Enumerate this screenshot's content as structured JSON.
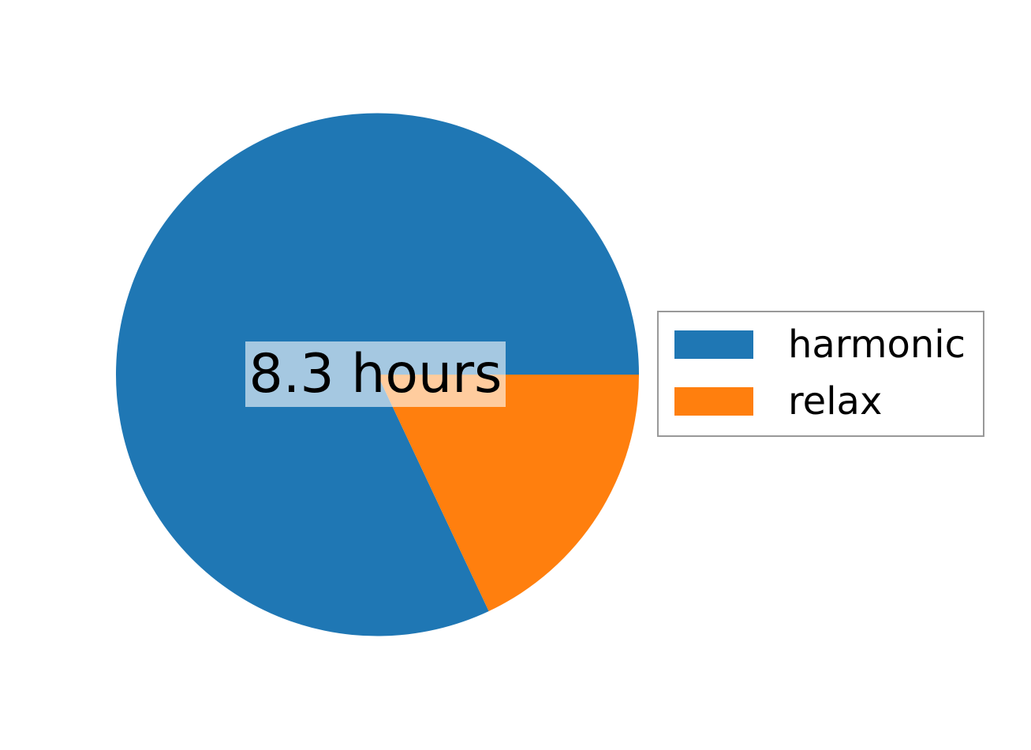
{
  "figure": {
    "background_color": "#ffffff"
  },
  "chart_data": {
    "type": "pie",
    "labels": [
      "harmonic",
      "relax"
    ],
    "values": [
      82,
      18
    ],
    "units": "percent_of_circle_estimated",
    "colors": [
      "#1f77b4",
      "#ff7f0e"
    ],
    "start_angle": 0,
    "counterclockwise": true,
    "center_label": "8.3 hours",
    "center_label_box_color": "rgba(255,255,255,0.6)",
    "legend": {
      "position": "center right",
      "border_color": "#999999",
      "entries": [
        "harmonic",
        "relax"
      ]
    }
  }
}
